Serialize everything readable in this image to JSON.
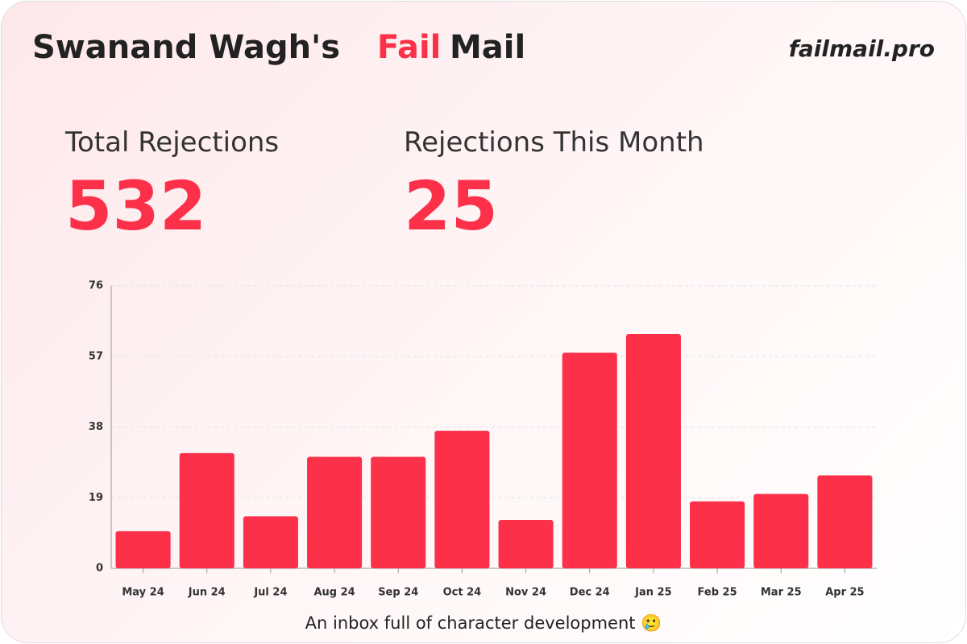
{
  "header": {
    "name": "Swanand Wagh's",
    "brand_fail": "Fail",
    "brand_mail": "Mail",
    "site": "failmail.pro"
  },
  "stats": [
    {
      "label": "Total Rejections",
      "value": 532
    },
    {
      "label": "Rejections This Month",
      "value": 25
    }
  ],
  "chart_data": {
    "type": "bar",
    "categories": [
      "May 24",
      "Jun 24",
      "Jul 24",
      "Aug 24",
      "Sep 24",
      "Oct 24",
      "Nov 24",
      "Dec 24",
      "Jan 25",
      "Feb 25",
      "Mar 25",
      "Apr 25"
    ],
    "values": [
      10,
      31,
      14,
      30,
      30,
      37,
      13,
      58,
      63,
      18,
      20,
      25
    ],
    "color": "#fc3049",
    "ylim": [
      0,
      76
    ],
    "yticks": [
      0,
      19,
      38,
      57,
      76
    ],
    "grid": true
  },
  "footer": "An inbox full of character development 🥲"
}
